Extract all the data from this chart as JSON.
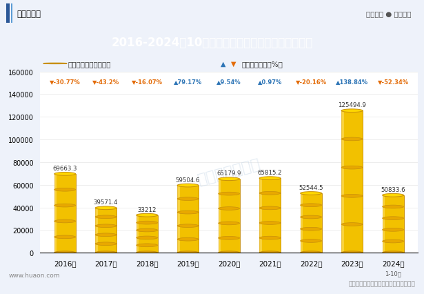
{
  "title": "2016-2024年10月郑州商品交易所白糖期货成交金额",
  "header_left": "华经情报网",
  "header_right": "专业严谨 ● 客观科学",
  "footer_left": "www.huaon.com",
  "footer_right": "数据来源：证监局；华经产业研究院整理",
  "watermark": "华经产业研究院",
  "note_2024": "1-10月",
  "legend_bar": "期货成交金额（亿元）",
  "legend_line": "累计同比增长（%）",
  "years": [
    "2016年",
    "2017年",
    "2018年",
    "2019年",
    "2020年",
    "2021年",
    "2022年",
    "2023年",
    "2024年"
  ],
  "values": [
    69663.3,
    39571.4,
    33212,
    59504.6,
    65179.9,
    65815.2,
    52544.5,
    125494.9,
    50833.6
  ],
  "growth": [
    -30.77,
    -43.2,
    -16.07,
    79.17,
    9.54,
    0.97,
    -20.16,
    138.84,
    -52.34
  ],
  "growth_labels": [
    "-30.77%",
    "-43.2%",
    "-16.07%",
    "79.17%",
    "9.54%",
    "0.97%",
    "-20.16%",
    "138.84%",
    "-52.34%"
  ],
  "bar_color_top": "#F5C518",
  "bar_color_mid": "#F0B800",
  "bar_color_bottom": "#E8A000",
  "bar_edge_color": "#C8900A",
  "title_bg_color": "#2B5797",
  "title_text_color": "#FFFFFF",
  "up_arrow_color": "#2E75B6",
  "down_arrow_color": "#E36C09",
  "fig_bg_color": "#EEF2FA",
  "header_bg_color": "#FFFFFF",
  "plot_bg_color": "#FFFFFF",
  "ylim": [
    0,
    160000
  ],
  "yticks": [
    0,
    20000,
    40000,
    60000,
    80000,
    100000,
    120000,
    140000,
    160000
  ]
}
